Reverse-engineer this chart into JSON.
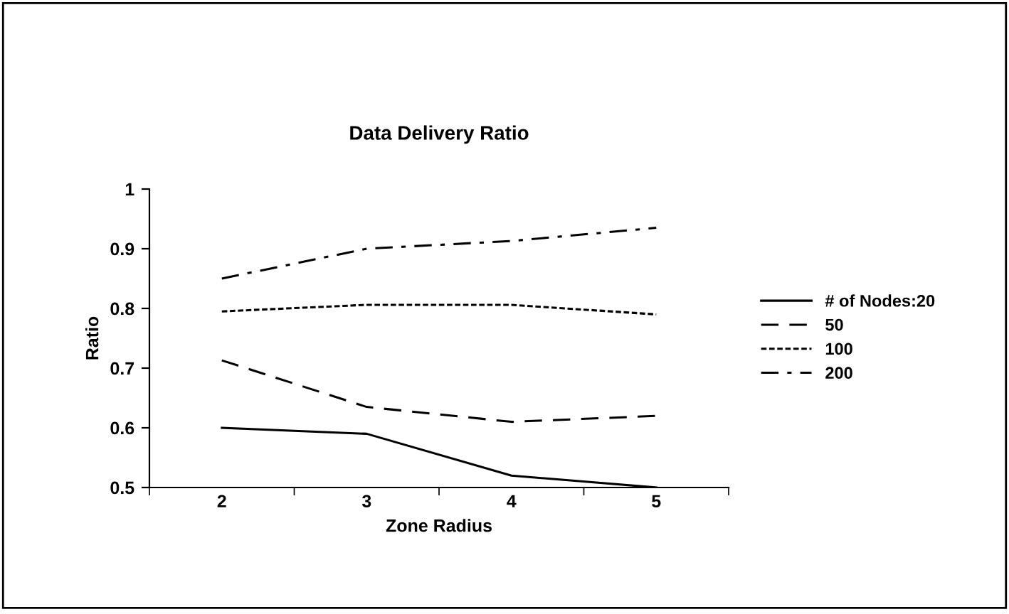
{
  "chart_data": {
    "type": "line",
    "title": "Data Delivery Ratio",
    "xlabel": "Zone Radius",
    "ylabel": "Ratio",
    "categories": [
      "2",
      "3",
      "4",
      "5"
    ],
    "series": [
      {
        "name": "# of Nodes:20",
        "color": "#000000",
        "line_style": "solid",
        "values": [
          0.6,
          0.59,
          0.52,
          0.5
        ]
      },
      {
        "name": "50",
        "color": "#000000",
        "line_style": "dashed",
        "values": [
          0.713,
          0.635,
          0.61,
          0.62
        ]
      },
      {
        "name": "100",
        "color": "#000000",
        "line_style": "dotted",
        "values": [
          0.795,
          0.806,
          0.806,
          0.79
        ]
      },
      {
        "name": "200",
        "color": "#000000",
        "line_style": "dashdot",
        "values": [
          0.85,
          0.9,
          0.913,
          0.935
        ]
      }
    ],
    "ylim": [
      0.5,
      1
    ],
    "yticks": [
      0.5,
      0.6,
      0.7,
      0.8,
      0.9,
      1
    ],
    "grid": false,
    "legend": "right",
    "marker": "none"
  }
}
